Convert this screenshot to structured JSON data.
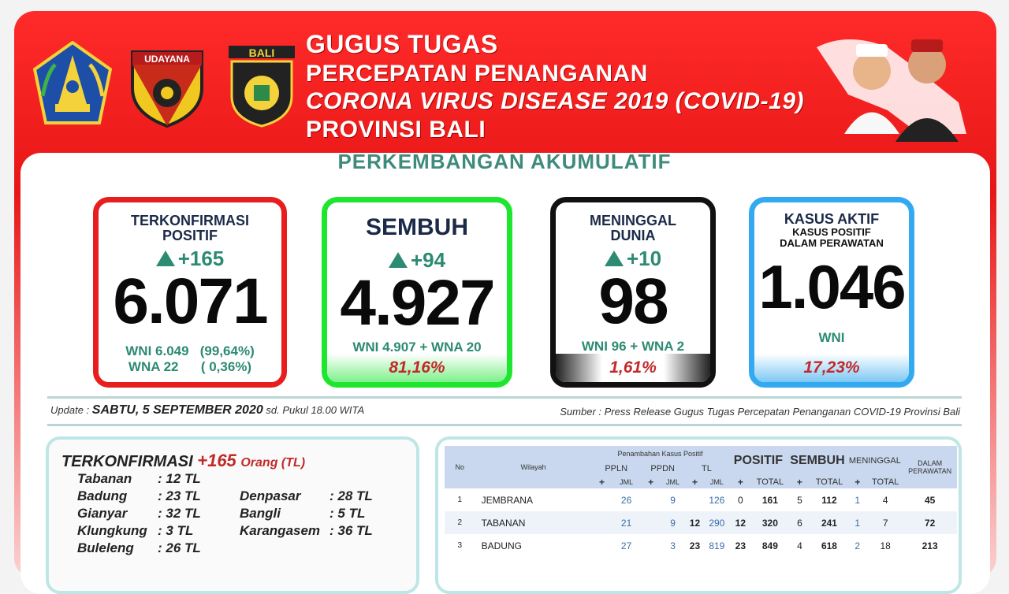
{
  "header": {
    "logos": [
      {
        "name": "bali-province-emblem-logo"
      },
      {
        "name": "udayana-military-emblem-logo",
        "text": "UDAYANA"
      },
      {
        "name": "bali-police-emblem-logo",
        "text": "BALI"
      }
    ],
    "title_lines": [
      "GUGUS TUGAS",
      "PERCEPATAN PENANGANAN",
      "CORONA VIRUS DISEASE 2019 (COVID-19)",
      "PROVINSI BALI"
    ]
  },
  "panel_title": "PERKEMBANGAN AKUMULATIF",
  "cards": {
    "confirmed": {
      "label_1": "TERKONFIRMASI",
      "label_2": "POSITIF",
      "delta": "+165",
      "value": "6.071",
      "detail_1": "WNI 6.049   (99,64%)",
      "detail_2": "WNA 22      ( 0,36%)",
      "color": "#e81e1e"
    },
    "recovered": {
      "label": "SEMBUH",
      "delta": "+94",
      "value": "4.927",
      "detail": "WNI 4.907 + WNA 20",
      "percent": "81,16%",
      "color": "#1ee62e"
    },
    "deaths": {
      "label_1": "MENINGGAL",
      "label_2": "DUNIA",
      "delta": "+10",
      "value": "98",
      "detail": "WNI 96 + WNA 2",
      "percent": "1,61%",
      "color": "#111111"
    },
    "active": {
      "label": "KASUS AKTIF",
      "sub_1": "KASUS POSITIF",
      "sub_2": "DALAM PERAWATAN",
      "value": "1.046",
      "detail": "WNI",
      "percent": "17,23%",
      "color": "#33aaf0"
    }
  },
  "update": {
    "prefix": "Update  :",
    "date": "SABTU, 5 SEPTEMBER 2020",
    "suffix": "sd. Pukul 18.00 WITA"
  },
  "source": "Sumber :  Press Release Gugus Tugas Percepatan Penanganan COVID-19 Provinsi Bali",
  "breakdown": {
    "heading": "TERKONFIRMASI",
    "count": "+165",
    "unit": "Orang (TL)",
    "regions": [
      {
        "name": "Tabanan",
        "value": ": 12 TL"
      },
      {
        "name": "Badung",
        "value": ": 23 TL"
      },
      {
        "name": "Gianyar",
        "value": ": 32 TL"
      },
      {
        "name": "Klungkung",
        "value": ": 3 TL"
      },
      {
        "name": "Buleleng",
        "value": ": 26 TL"
      },
      {
        "name": "Denpasar",
        "value": ": 28 TL"
      },
      {
        "name": "Bangli",
        "value": ": 5 TL"
      },
      {
        "name": "Karangasem",
        "value": ": 36 TL"
      }
    ]
  },
  "table": {
    "h_no": "No",
    "h_wilayah": "Wilayah",
    "h_penambahan": "Penambahan Kasus Positif",
    "h_ppln": "PPLN",
    "h_ppdn": "PPDN",
    "h_tl": "TL",
    "h_positif": "POSITIF",
    "h_sembuh": "SEMBUH",
    "h_meninggal": "MENINGGAL",
    "h_dalam": "DALAM PERAWATAN",
    "h_plus": "+",
    "h_jml": "JML",
    "h_total": "TOTAL",
    "rows": [
      {
        "no": "1",
        "wilayah": "JEMBRANA",
        "ppln_p": "",
        "ppln_j": "26",
        "ppdn_p": "",
        "ppdn_j": "9",
        "tl_p": "",
        "tl_j": "126",
        "pos_p": "0",
        "pos_t": "161",
        "sem_p": "5",
        "sem_t": "112",
        "men_p": "1",
        "men_t": "4",
        "dal": "45"
      },
      {
        "no": "2",
        "wilayah": "TABANAN",
        "ppln_p": "",
        "ppln_j": "21",
        "ppdn_p": "",
        "ppdn_j": "9",
        "tl_p": "12",
        "tl_j": "290",
        "pos_p": "12",
        "pos_t": "320",
        "sem_p": "6",
        "sem_t": "241",
        "men_p": "1",
        "men_t": "7",
        "dal": "72"
      },
      {
        "no": "3",
        "wilayah": "BADUNG",
        "ppln_p": "",
        "ppln_j": "27",
        "ppdn_p": "",
        "ppdn_j": "3",
        "tl_p": "23",
        "tl_j": "819",
        "pos_p": "23",
        "pos_t": "849",
        "sem_p": "4",
        "sem_t": "618",
        "men_p": "2",
        "men_t": "18",
        "dal": "213"
      }
    ]
  }
}
